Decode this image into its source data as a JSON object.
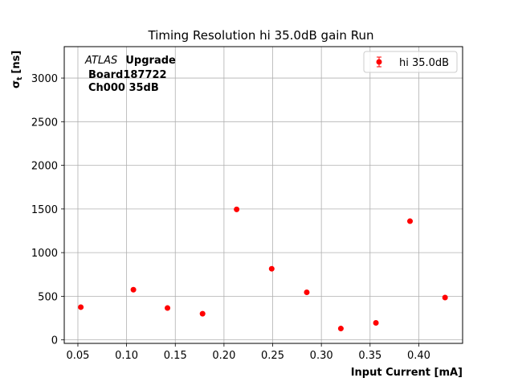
{
  "chart_data": {
    "type": "scatter",
    "title": "Timing Resolution hi 35.0dB gain Run",
    "xlabel": "Input Current [mA]",
    "ylabel_main": "σ",
    "ylabel_sub": "t",
    "ylabel_unit": "[ns]",
    "xlim": [
      0.036,
      0.445
    ],
    "ylim": [
      -40,
      3360
    ],
    "xticks": [
      0.05,
      0.1,
      0.15,
      0.2,
      0.25,
      0.3,
      0.35,
      0.4
    ],
    "xtick_labels": [
      "0.05",
      "0.10",
      "0.15",
      "0.20",
      "0.25",
      "0.30",
      "0.35",
      "0.40"
    ],
    "yticks": [
      0,
      500,
      1000,
      1500,
      2000,
      2500,
      3000
    ],
    "ytick_labels": [
      "0",
      "500",
      "1000",
      "1500",
      "2000",
      "2500",
      "3000"
    ],
    "grid": true,
    "legend_position": "top-right",
    "series": [
      {
        "name": "hi 35.0dB",
        "color": "#ff0000",
        "marker": "circle",
        "x": [
          0.053,
          0.107,
          0.142,
          0.178,
          0.213,
          0.249,
          0.285,
          0.32,
          0.356,
          0.391,
          0.427
        ],
        "y": [
          375,
          575,
          365,
          300,
          1495,
          815,
          545,
          130,
          195,
          1360,
          485
        ]
      }
    ],
    "annotations": {
      "atlas": "ATLAS",
      "upgrade": "Upgrade",
      "board": "Board187722",
      "channel": "Ch000 35dB"
    }
  }
}
